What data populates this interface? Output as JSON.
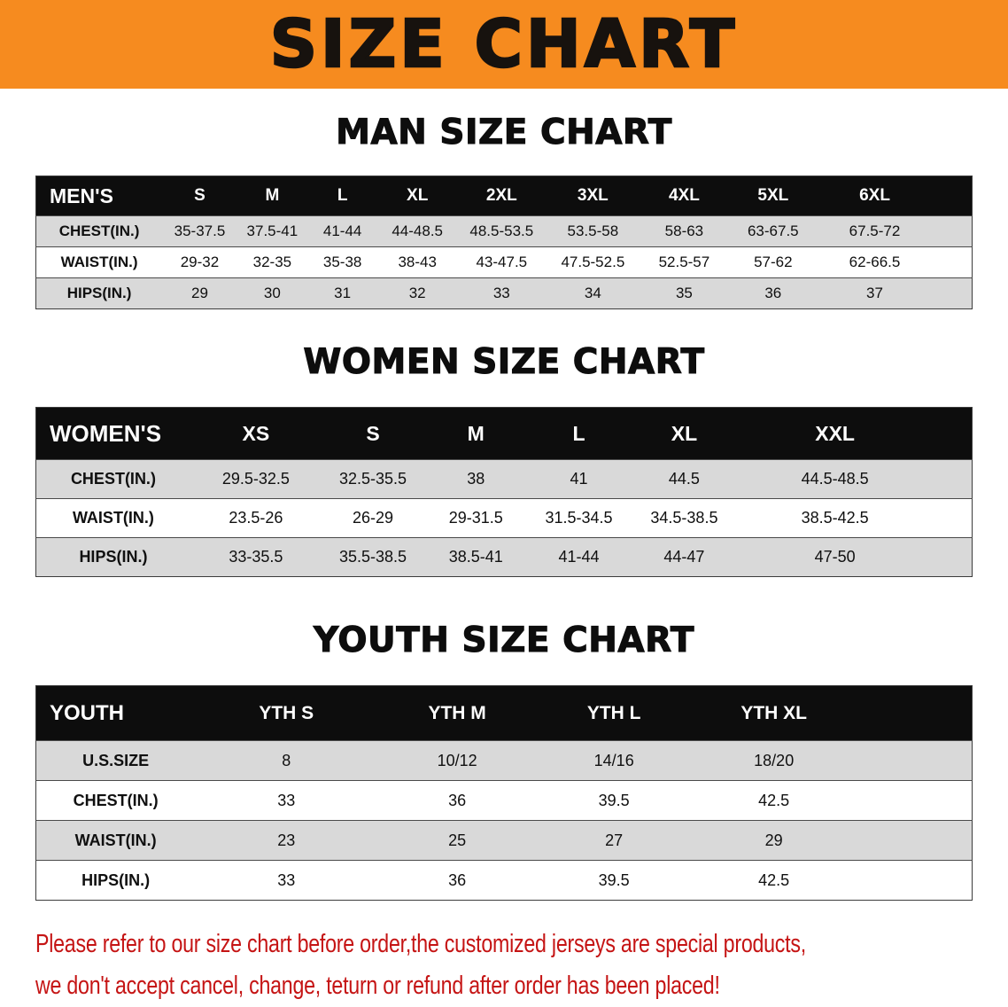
{
  "banner": {
    "title": "SIZE CHART"
  },
  "colors": {
    "banner_bg": "#f68b1f",
    "table_header_bg": "#0d0d0d",
    "row_alt_bg": "#d9d9d9",
    "footer_text": "#c51414"
  },
  "chart_data": [
    {
      "type": "table",
      "title": "MAN SIZE CHART",
      "columns": [
        "MEN'S",
        "S",
        "M",
        "L",
        "XL",
        "2XL",
        "3XL",
        "4XL",
        "5XL",
        "6XL"
      ],
      "rows": [
        [
          "CHEST(IN.)",
          "35-37.5",
          "37.5-41",
          "41-44",
          "44-48.5",
          "48.5-53.5",
          "53.5-58",
          "58-63",
          "63-67.5",
          "67.5-72"
        ],
        [
          "WAIST(IN.)",
          "29-32",
          "32-35",
          "35-38",
          "38-43",
          "43-47.5",
          "47.5-52.5",
          "52.5-57",
          "57-62",
          "62-66.5"
        ],
        [
          "HIPS(IN.)",
          "29",
          "30",
          "31",
          "32",
          "33",
          "34",
          "35",
          "36",
          "37"
        ]
      ]
    },
    {
      "type": "table",
      "title": "WOMEN SIZE CHART",
      "columns": [
        "WOMEN'S",
        "XS",
        "S",
        "M",
        "L",
        "XL",
        "XXL"
      ],
      "rows": [
        [
          "CHEST(IN.)",
          "29.5-32.5",
          "32.5-35.5",
          "38",
          "41",
          "44.5",
          "44.5-48.5"
        ],
        [
          "WAIST(IN.)",
          "23.5-26",
          "26-29",
          "29-31.5",
          "31.5-34.5",
          "34.5-38.5",
          "38.5-42.5"
        ],
        [
          "HIPS(IN.)",
          "33-35.5",
          "35.5-38.5",
          "38.5-41",
          "41-44",
          "44-47",
          "47-50"
        ]
      ]
    },
    {
      "type": "table",
      "title": "YOUTH SIZE CHART",
      "columns": [
        "YOUTH",
        "YTH S",
        "YTH M",
        "YTH L",
        "YTH XL"
      ],
      "rows": [
        [
          "U.S.SIZE",
          "8",
          "10/12",
          "14/16",
          "18/20"
        ],
        [
          "CHEST(IN.)",
          "33",
          "36",
          "39.5",
          "42.5"
        ],
        [
          "WAIST(IN.)",
          "23",
          "25",
          "27",
          "29"
        ],
        [
          "HIPS(IN.)",
          "33",
          "36",
          "39.5",
          "42.5"
        ]
      ]
    }
  ],
  "footer": {
    "lines": [
      "Please refer to our size chart before order,the customized jerseys are special products,",
      "we don't accept cancel, change, teturn or refund after order has been placed!"
    ]
  }
}
